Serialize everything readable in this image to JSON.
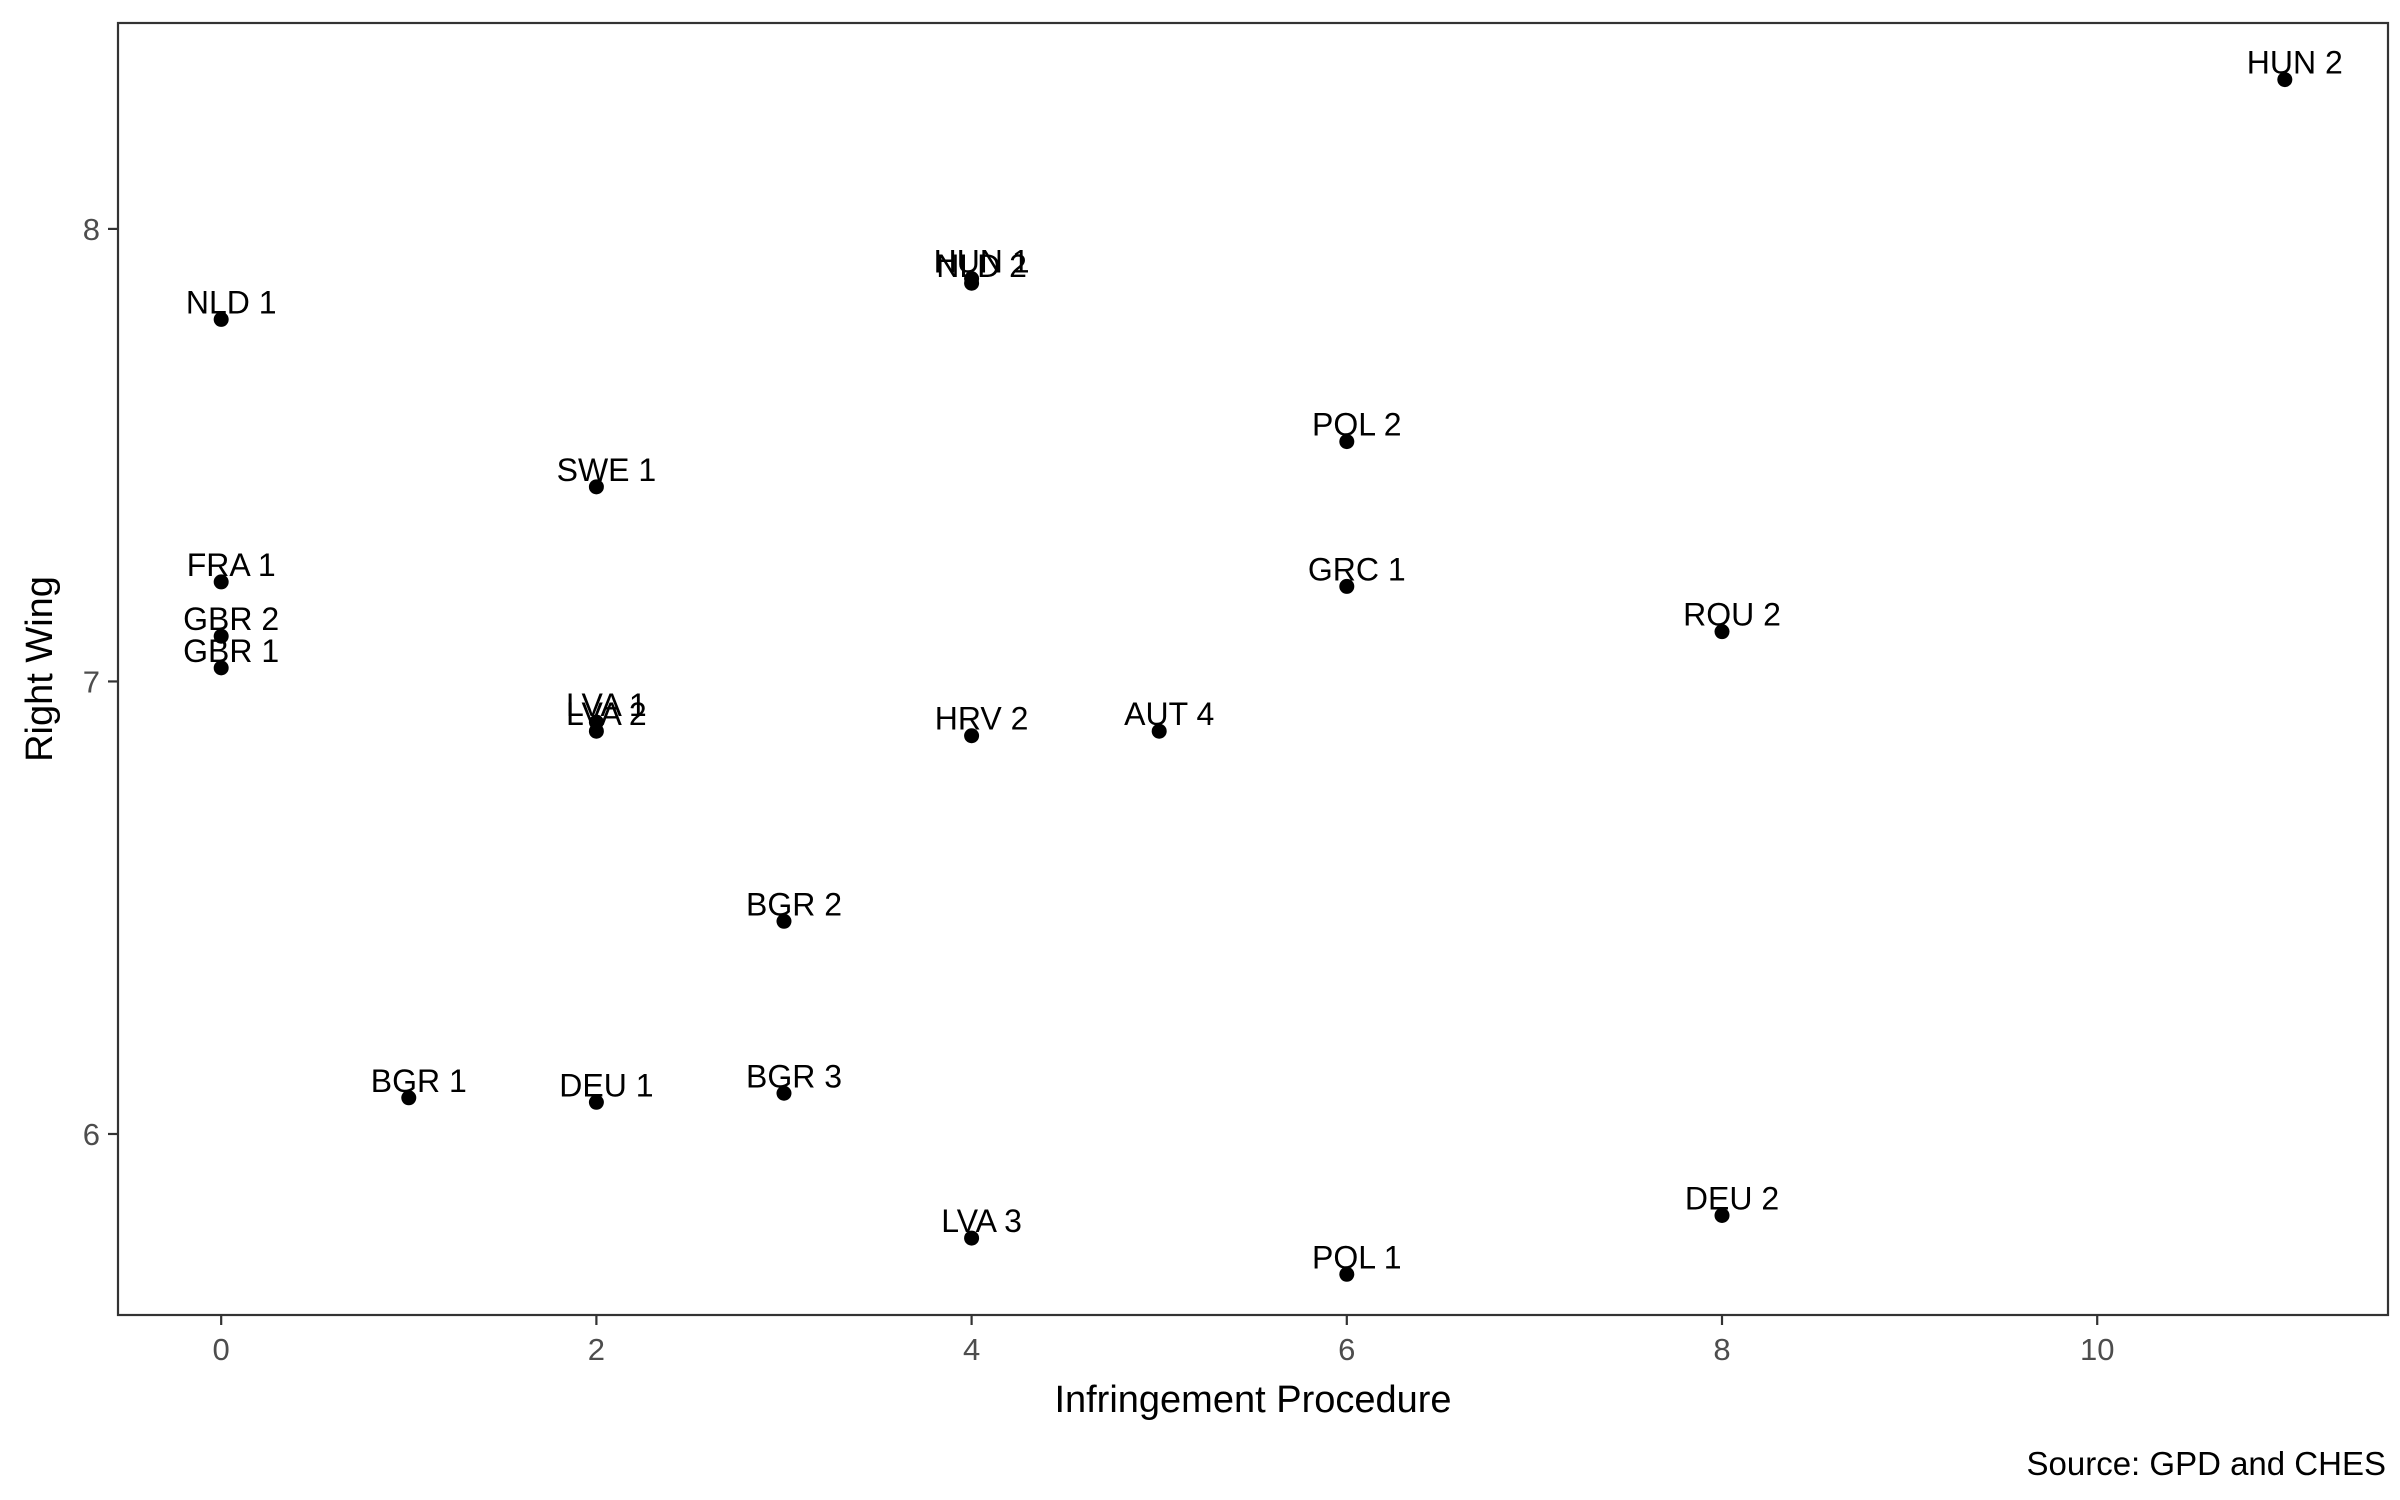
{
  "chart_data": {
    "type": "scatter",
    "xlabel": "Infringement Procedure",
    "ylabel": "Right Wing",
    "caption": "Source: GPD and CHES",
    "xlim": [
      -0.55,
      11.55
    ],
    "ylim": [
      5.6,
      8.455
    ],
    "x_ticks": [
      0,
      2,
      4,
      6,
      8,
      10
    ],
    "y_ticks": [
      6,
      7,
      8
    ],
    "grid": false,
    "point_color": "#000000",
    "points": [
      {
        "label": "HUN 2",
        "x": 11,
        "y": 8.33
      },
      {
        "label": "HUN 1",
        "x": 4,
        "y": 7.89
      },
      {
        "label": "NLD 2",
        "x": 4,
        "y": 7.88
      },
      {
        "label": "NLD 1",
        "x": 0,
        "y": 7.8
      },
      {
        "label": "POL 2",
        "x": 6,
        "y": 7.53
      },
      {
        "label": "SWE 1",
        "x": 2,
        "y": 7.43
      },
      {
        "label": "FRA 1",
        "x": 0,
        "y": 7.22
      },
      {
        "label": "GRC 1",
        "x": 6,
        "y": 7.21
      },
      {
        "label": "GBR 2",
        "x": 0,
        "y": 7.1
      },
      {
        "label": "ROU 2",
        "x": 8,
        "y": 7.11
      },
      {
        "label": "GBR 1",
        "x": 0,
        "y": 7.03
      },
      {
        "label": "LVA 1",
        "x": 2,
        "y": 6.91
      },
      {
        "label": "LVA 2",
        "x": 2,
        "y": 6.89
      },
      {
        "label": "HRV 2",
        "x": 4,
        "y": 6.88
      },
      {
        "label": "AUT 4",
        "x": 5,
        "y": 6.89
      },
      {
        "label": "BGR 2",
        "x": 3,
        "y": 6.47
      },
      {
        "label": "BGR 1",
        "x": 1,
        "y": 6.08
      },
      {
        "label": "DEU 1",
        "x": 2,
        "y": 6.07
      },
      {
        "label": "BGR 3",
        "x": 3,
        "y": 6.09
      },
      {
        "label": "LVA 3",
        "x": 4,
        "y": 5.77
      },
      {
        "label": "DEU 2",
        "x": 8,
        "y": 5.82
      },
      {
        "label": "POL 1",
        "x": 6,
        "y": 5.69
      }
    ]
  }
}
